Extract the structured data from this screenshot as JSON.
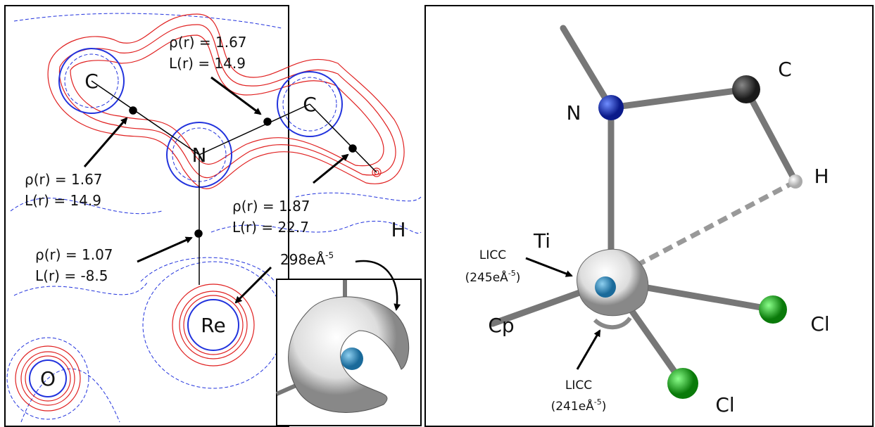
{
  "left_panel": {
    "atoms": [
      "C",
      "N",
      "C",
      "Re",
      "O",
      "H"
    ],
    "annotations": [
      {
        "rho": "ρ(r) = 1.67",
        "lap": "L(r) = 14.9"
      },
      {
        "rho": "ρ(r) = 1.67",
        "lap": "L(r) = 14.9"
      },
      {
        "rho": "ρ(r) = 1.87",
        "lap": "L(r) = 22.7"
      },
      {
        "rho": "ρ(r) = 1.07",
        "lap": "L(r) = -8.5"
      }
    ],
    "inset_label": {
      "base": "298eÅ",
      "sup": "-5"
    }
  },
  "right_panel": {
    "atoms": [
      "N",
      "C",
      "H",
      "Ti",
      "Cl",
      "Cl",
      "Cp"
    ],
    "licc": [
      {
        "label": "LICC",
        "value": {
          "base": "(245eÅ",
          "sup": "-5",
          "end": ")"
        }
      },
      {
        "label": "LICC",
        "value": {
          "base": "(241eÅ",
          "sup": "-5",
          "end": ")"
        }
      }
    ]
  }
}
